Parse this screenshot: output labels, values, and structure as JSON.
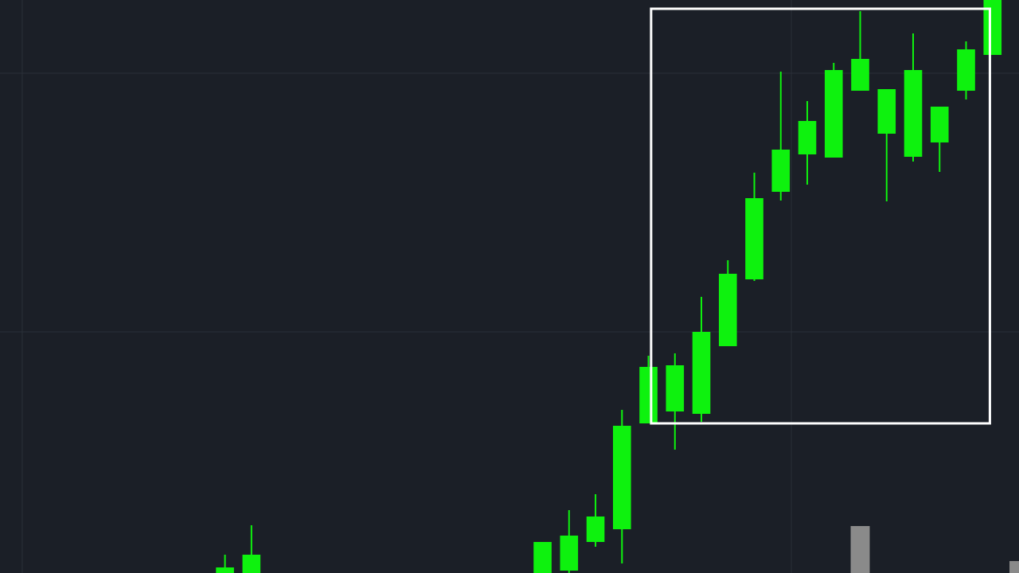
{
  "chart_data": {
    "type": "candlestick",
    "x": [
      0,
      1,
      12,
      13,
      14,
      15,
      16,
      17,
      18,
      19,
      20,
      21,
      22,
      23,
      24,
      25,
      26,
      27,
      28,
      29
    ],
    "open": [
      0,
      0,
      0,
      3,
      39,
      55,
      188,
      203,
      200,
      285,
      369,
      479,
      526,
      522,
      606,
      552,
      523,
      541,
      606,
      651
    ],
    "high": [
      23,
      60,
      39,
      79,
      99,
      205,
      273,
      276,
      347,
      393,
      503,
      630,
      593,
      641,
      706,
      608,
      678,
      586,
      668,
      720
    ],
    "low": [
      0,
      0,
      0,
      0,
      33,
      12,
      188,
      155,
      190,
      285,
      367,
      468,
      488,
      522,
      606,
      467,
      517,
      504,
      595,
      651
    ],
    "close": [
      7,
      23,
      39,
      47,
      71,
      185,
      259,
      261,
      303,
      376,
      471,
      532,
      568,
      632,
      646,
      608,
      632,
      586,
      658,
      720
    ],
    "color": "#0ef20e",
    "volume": {
      "x": [
        24,
        30
      ],
      "values": [
        59,
        15
      ],
      "color": "#8a8a8a"
    },
    "highlight": {
      "x": [
        16.1,
        28.9
      ],
      "y": [
        188,
        709
      ],
      "color": "#ffffff"
    },
    "xlim": [
      -8.5,
      30
    ],
    "ylim": [
      0,
      720
    ],
    "xticks": [
      -7.66,
      21.4
    ],
    "yticks": [
      303,
      628
    ],
    "grid": true,
    "tick_labels": false
  }
}
